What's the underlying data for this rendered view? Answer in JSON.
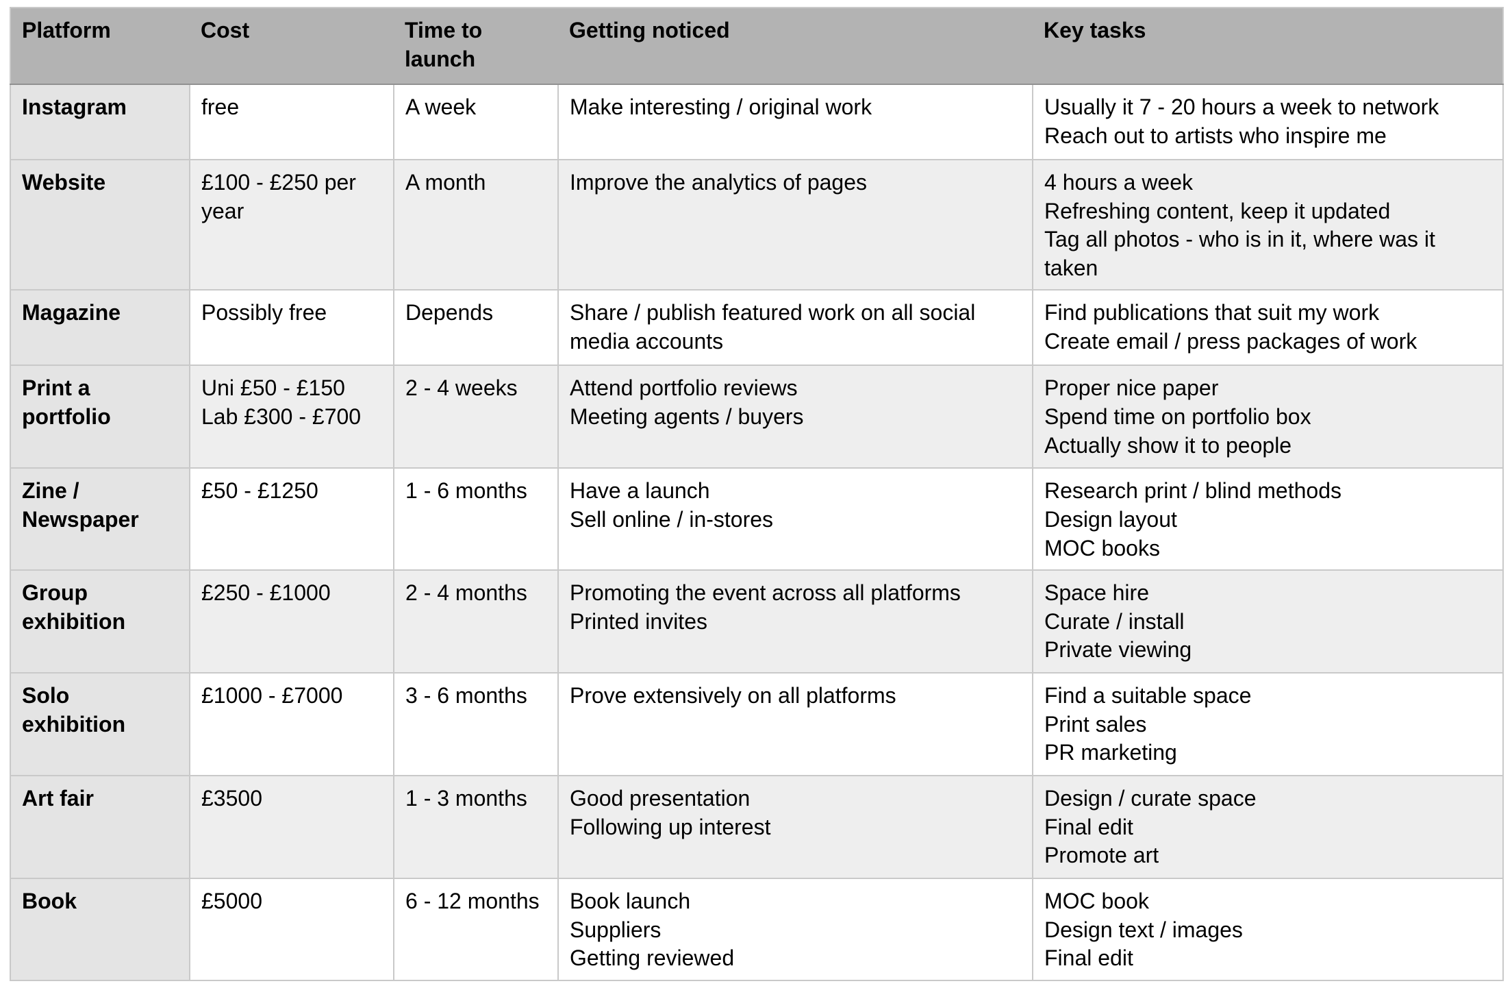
{
  "colors": {
    "header_bg": "#b3b3b3",
    "header_border": "#919191",
    "row_alt_bg": "#eeeeee",
    "first_col_bg": "#e4e4e4",
    "border": "#c9c9c9",
    "text": "#000000",
    "page_bg": "#ffffff"
  },
  "table": {
    "columns": [
      "Platform",
      "Cost",
      "Time to launch",
      "Getting noticed",
      "Key tasks"
    ],
    "rows": [
      {
        "platform": "Instagram",
        "cost": "free",
        "time_to_launch": "A week",
        "getting_noticed": "Make interesting / original work",
        "key_tasks": "Usually it 7 - 20 hours a week to network\nReach out to artists who inspire me"
      },
      {
        "platform": "Website",
        "cost": "£100 - £250 per year",
        "time_to_launch": "A month",
        "getting_noticed": "Improve the analytics of pages",
        "key_tasks": "4 hours a week\nRefreshing content, keep it updated\nTag all photos - who is in it, where was it taken"
      },
      {
        "platform": "Magazine",
        "cost": "Possibly free",
        "time_to_launch": "Depends",
        "getting_noticed": "Share / publish featured work on all social media accounts",
        "key_tasks": "Find publications that suit my work\nCreate email / press packages of work"
      },
      {
        "platform": "Print a portfolio",
        "cost": "Uni £50 - £150\nLab £300 - £700",
        "time_to_launch": "2 - 4 weeks",
        "getting_noticed": "Attend portfolio reviews\nMeeting agents / buyers",
        "key_tasks": "Proper nice paper\nSpend time on portfolio box\nActually show it to people"
      },
      {
        "platform": "Zine / Newspaper",
        "cost": "£50 - £1250",
        "time_to_launch": "1 - 6 months",
        "getting_noticed": "Have a launch\nSell online / in-stores",
        "key_tasks": "Research print / blind methods\nDesign layout\nMOC books"
      },
      {
        "platform": "Group exhibition",
        "cost": "£250 - £1000",
        "time_to_launch": "2 - 4 months",
        "getting_noticed": "Promoting the event across all platforms\nPrinted invites",
        "key_tasks": "Space hire\nCurate / install\nPrivate viewing"
      },
      {
        "platform": "Solo exhibition",
        "cost": "£1000 - £7000",
        "time_to_launch": "3 - 6 months",
        "getting_noticed": "Prove extensively on all platforms",
        "key_tasks": "Find a suitable space\nPrint sales\nPR marketing"
      },
      {
        "platform": "Art fair",
        "cost": "£3500",
        "time_to_launch": "1 - 3 months",
        "getting_noticed": "Good presentation\nFollowing up interest",
        "key_tasks": "Design / curate space\nFinal edit\nPromote art"
      },
      {
        "platform": "Book",
        "cost": "£5000",
        "time_to_launch": "6 - 12 months",
        "getting_noticed": "Book launch\nSuppliers\nGetting reviewed",
        "key_tasks": "MOC book\nDesign text / images\nFinal edit"
      }
    ]
  }
}
